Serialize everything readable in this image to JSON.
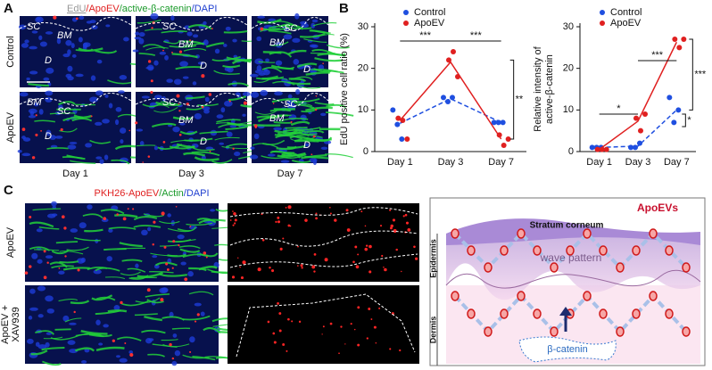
{
  "panel_A": {
    "label": "A",
    "stain": [
      "EdU",
      "/ApoEV",
      "/active-β-catenin",
      "/DAPI"
    ],
    "rows": [
      "Control",
      "ApoEV"
    ],
    "columns": [
      "Day 1",
      "Day 3",
      "Day 7"
    ],
    "images": [
      {
        "labels": [
          "SC",
          "BM",
          "D"
        ]
      },
      {
        "labels": [
          "SC",
          "BM",
          "D"
        ]
      },
      {
        "labels": [
          "SC",
          "BM",
          "D"
        ]
      },
      {
        "labels": [
          "BM",
          "SC",
          "D"
        ]
      },
      {
        "labels": [
          "SC",
          "BM",
          "D"
        ]
      },
      {
        "labels": [
          "SC",
          "BM",
          "D"
        ]
      }
    ]
  },
  "panel_B": {
    "label": "B"
  },
  "panel_C": {
    "label": "C",
    "stain": [
      "PKH26-ApoEV",
      "/Actin",
      "/DAPI"
    ],
    "rows": [
      [
        "ApoEV"
      ],
      [
        "ApoEV +",
        "XAV939"
      ]
    ],
    "diagram": {
      "title": "ApoEVs",
      "stratum": "Stratum corneum",
      "wave": "wave pattern",
      "epidermis": "Epidermis",
      "dermis": "Dermis",
      "beta": "β-catenin"
    }
  },
  "chart_data": [
    {
      "type": "scatter",
      "ylabel": [
        "EdU positive cell ratio (%)"
      ],
      "categories": [
        "Day 1",
        "Day 3",
        "Day 7"
      ],
      "ylim": [
        0,
        30
      ],
      "yticks": [
        0,
        10,
        20,
        30
      ],
      "series": [
        {
          "name": "Control",
          "color": "#1f4fe0",
          "values": [
            6.8,
            12.7,
            7
          ],
          "points": [
            [
              10,
              6.5,
              3
            ],
            [
              13,
              12,
              13
            ],
            [
              7,
              7,
              7
            ]
          ]
        },
        {
          "name": "ApoEV",
          "color": "#e02020",
          "values": [
            7.5,
            21.5,
            3
          ],
          "points": [
            [
              8,
              7.5,
              3
            ],
            [
              22,
              24,
              18
            ],
            [
              4,
              1.5,
              3
            ]
          ]
        }
      ],
      "significance": [
        "***",
        "***",
        "**"
      ]
    },
    {
      "type": "scatter",
      "ylabel": [
        "Relative intensity of",
        "active-β-catenin"
      ],
      "categories": [
        "Day 1",
        "Day 3",
        "Day 7"
      ],
      "ylim": [
        0,
        30
      ],
      "yticks": [
        0,
        10,
        20,
        30
      ],
      "series": [
        {
          "name": "Control",
          "color": "#1f4fe0",
          "values": [
            1,
            1.3,
            10
          ],
          "points": [
            [
              1,
              1,
              1
            ],
            [
              1,
              1,
              2
            ],
            [
              13,
              7,
              10
            ]
          ]
        },
        {
          "name": "ApoEV",
          "color": "#e02020",
          "values": [
            0.5,
            7.3,
            26.3
          ],
          "points": [
            [
              0.5,
              0.5,
              0.5
            ],
            [
              8,
              5,
              9
            ],
            [
              27,
              25,
              27
            ]
          ]
        }
      ],
      "significance": [
        "*",
        "***",
        "*",
        "***"
      ]
    }
  ]
}
